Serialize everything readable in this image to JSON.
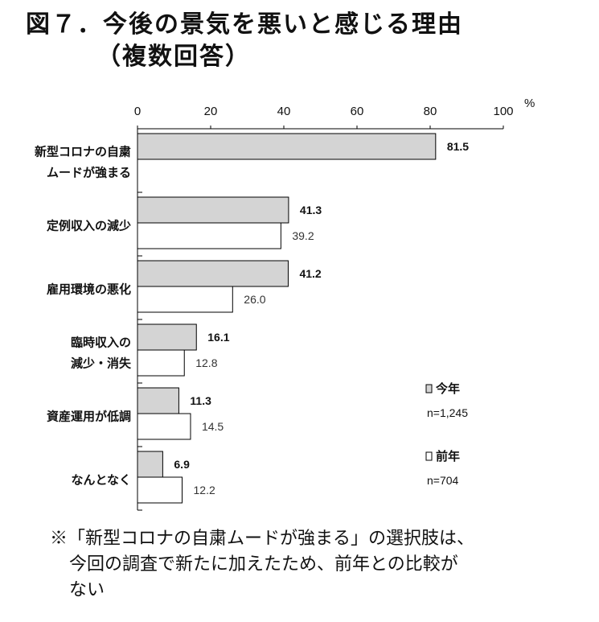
{
  "title": "図７．今後の景気を悪いと感じる理由",
  "subtitle": "（複数回答）",
  "chart_data": {
    "type": "bar",
    "orientation": "horizontal",
    "unit": "%",
    "xlim": [
      0,
      100
    ],
    "ticks": [
      0,
      20,
      40,
      60,
      80,
      100
    ],
    "tick_labels": [
      "0",
      "20",
      "40",
      "60",
      "80",
      "100"
    ],
    "categories": [
      [
        "新型コロナの自粛",
        "ムードが強まる"
      ],
      [
        "定例収入の減少"
      ],
      [
        "雇用環境の悪化"
      ],
      [
        "臨時収入の",
        "減少・消失"
      ],
      [
        "資産運用が低調"
      ],
      [
        "なんとなく"
      ]
    ],
    "series": [
      {
        "name": "今年",
        "n": "n=1,245",
        "color": "#d4d4d4",
        "values": [
          81.5,
          41.3,
          41.2,
          16.1,
          11.3,
          6.9
        ],
        "labels": [
          "81.5",
          "41.3",
          "41.2",
          "16.1",
          "11.3",
          "6.9"
        ]
      },
      {
        "name": "前年",
        "n": "n=704",
        "color": "#ffffff",
        "values": [
          null,
          39.2,
          26.0,
          12.8,
          14.5,
          12.2
        ],
        "labels": [
          "",
          "39.2",
          "26.0",
          "12.8",
          "14.5",
          "12.2"
        ]
      }
    ]
  },
  "note": {
    "line1": "※「新型コロナの自粛ムードが強まる」の選択肢は、",
    "line2": "今回の調査で新たに加えたため、前年との比較が",
    "line3": "ない"
  }
}
